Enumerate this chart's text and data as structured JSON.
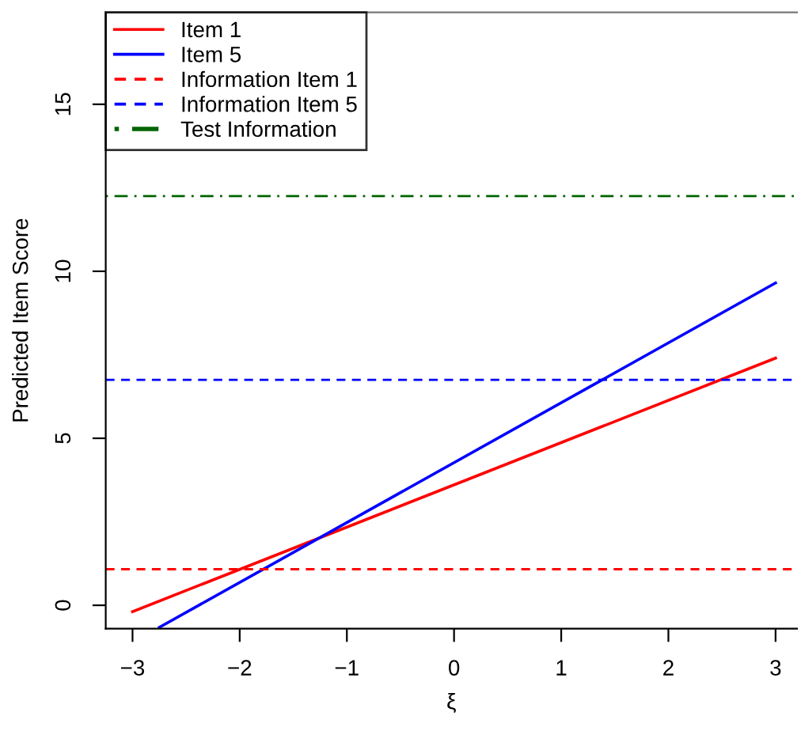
{
  "chart_data": {
    "type": "line",
    "xlabel": "ξ",
    "ylabel": "Predicted Item Score",
    "series": [
      {
        "name": "Item 1",
        "color": "#ff0000",
        "x": [
          -3,
          3
        ],
        "values": [
          -0.19,
          7.4
        ]
      },
      {
        "name": "Item 5",
        "color": "#0000ff",
        "x": [
          -2.75,
          3
        ],
        "values": [
          -0.66,
          9.65
        ]
      }
    ],
    "ref_lines": [
      {
        "axis": "y",
        "value": 1.08,
        "label": "Information Item 1",
        "color": "#ff0000",
        "line_style": "dashed"
      },
      {
        "axis": "y",
        "value": 6.75,
        "label": "Information Item 5",
        "color": "#0000ff",
        "line_style": "dashed"
      },
      {
        "axis": "y",
        "value": 12.25,
        "label": "Test Information",
        "color": "#006400",
        "line_style": "dashdot"
      }
    ],
    "xlim": [
      -3.25,
      3.2
    ],
    "ylim": [
      -0.7,
      17.75
    ],
    "xticks": [
      {
        "value": -3,
        "label": "−3"
      },
      {
        "value": -2,
        "label": "−2"
      },
      {
        "value": -1,
        "label": "−1"
      },
      0,
      1,
      2,
      3
    ],
    "yticks": [
      0,
      5,
      10,
      15
    ],
    "legend": "top left",
    "line_style": "solid",
    "marker": "none",
    "grid": false
  }
}
